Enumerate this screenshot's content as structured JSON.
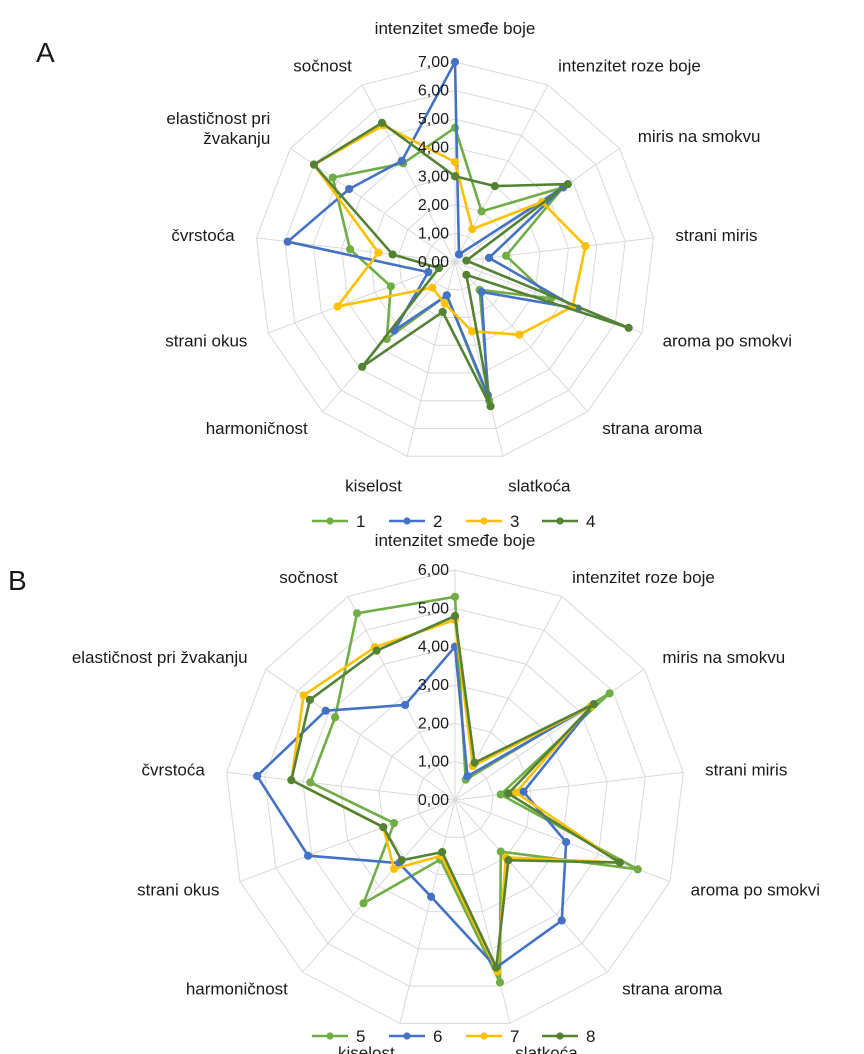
{
  "chart_data": [
    {
      "type": "radar",
      "panel_label": "A",
      "axes": [
        "intenzitet smeđe boje",
        "intenzitet roze boje",
        "miris na smokvu",
        "strani miris",
        "aroma po smokvi",
        "strana aroma",
        "slatkoća",
        "kiselost",
        "harmoničnost",
        "strani okus",
        "čvrstoća",
        "elastičnost pri žvakanju",
        "sočnost"
      ],
      "axis_labels": [
        "intenzitet smeđe boje",
        "intenzitet roze boje",
        "miris na smokvu",
        "strani miris",
        "aroma po smokvi",
        "strana aroma",
        "slatkoća",
        "kiselost",
        "harmoničnost",
        "strani okus",
        "čvrstoća",
        "elastičnost pri\nžvakanju",
        "sočnost"
      ],
      "rmax": 7,
      "ticks": [
        "0,00",
        "1,00",
        "2,00",
        "3,00",
        "4,00",
        "5,00",
        "6,00",
        "7,00"
      ],
      "grid": true,
      "legend_position": "bottom",
      "series": [
        {
          "name": "1",
          "color": "#70ad47",
          "values": [
            4.7,
            2.0,
            4.6,
            1.8,
            3.6,
            1.3,
            5.0,
            1.2,
            3.6,
            2.4,
            3.7,
            5.2,
            3.9
          ]
        },
        {
          "name": "2",
          "color": "#4472c4",
          "values": [
            7.0,
            0.3,
            4.6,
            1.2,
            4.6,
            1.4,
            4.8,
            1.2,
            3.2,
            1.0,
            5.9,
            4.5,
            4.0
          ]
        },
        {
          "name": "3",
          "color": "#ffc000",
          "values": [
            3.5,
            1.3,
            3.7,
            4.6,
            4.4,
            3.4,
            2.5,
            1.5,
            1.2,
            4.4,
            2.7,
            6.0,
            5.4
          ]
        },
        {
          "name": "4",
          "color": "#548235",
          "values": [
            3.0,
            3.0,
            4.8,
            0.4,
            6.5,
            0.6,
            5.2,
            1.8,
            4.9,
            0.6,
            2.2,
            6.0,
            5.5
          ]
        }
      ]
    },
    {
      "type": "radar",
      "panel_label": "B",
      "axes": [
        "intenzitet smeđe boje",
        "intenzitet roze boje",
        "miris na smokvu",
        "strani miris",
        "aroma po smokvi",
        "strana aroma",
        "slatkoća",
        "kiselost",
        "harmoničnost",
        "strani okus",
        "čvrstoća",
        "elastičnost pri žvakanju",
        "sočnost"
      ],
      "axis_labels": [
        "intenzitet smeđe boje",
        "intenzitet roze boje",
        "miris na smokvu",
        "strani miris",
        "aroma po smokvi",
        "strana aroma",
        "slatkoća",
        "kiselost",
        "harmoničnost",
        "strani okus",
        "čvrstoća",
        "elastičnost pri žvakanju",
        "sočnost"
      ],
      "rmax": 6,
      "ticks": [
        "0,00",
        "1,00",
        "2,00",
        "3,00",
        "4,00",
        "5,00",
        "6,00"
      ],
      "grid": true,
      "legend_position": "bottom",
      "series": [
        {
          "name": "5",
          "color": "#70ad47",
          "values": [
            5.3,
            0.6,
            4.9,
            1.2,
            5.1,
            1.8,
            4.9,
            1.6,
            3.6,
            1.7,
            3.8,
            3.8,
            5.5
          ]
        },
        {
          "name": "6",
          "color": "#4472c4",
          "values": [
            4.0,
            0.7,
            4.4,
            1.8,
            3.1,
            4.2,
            4.5,
            2.6,
            2.2,
            4.1,
            5.2,
            4.1,
            2.8
          ]
        },
        {
          "name": "7",
          "color": "#ffc000",
          "values": [
            4.7,
            1.0,
            4.3,
            1.6,
            4.6,
            2.0,
            4.6,
            1.5,
            2.4,
            2.0,
            4.3,
            4.8,
            4.5
          ]
        },
        {
          "name": "8",
          "color": "#548235",
          "values": [
            4.8,
            1.1,
            4.4,
            1.4,
            4.6,
            2.1,
            4.5,
            1.4,
            2.1,
            2.0,
            4.3,
            4.6,
            4.4
          ]
        }
      ]
    }
  ]
}
